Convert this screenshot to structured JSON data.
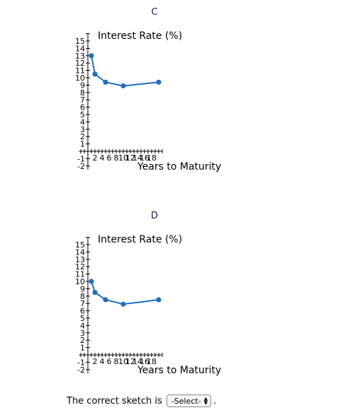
{
  "charts": [
    {
      "title": "C"
    },
    {
      "title": "D"
    }
  ],
  "answer": {
    "label": "The correct sketch is",
    "select_value": "-Select-",
    "period": "."
  },
  "chart_data": [
    {
      "type": "line",
      "title": "C",
      "xlabel": "Years to Maturity",
      "ylabel": "Interest Rate (%)",
      "xlim": [
        -2.5,
        21
      ],
      "ylim": [
        -2.5,
        16
      ],
      "x_ticks": [
        2,
        4,
        6,
        8,
        10,
        12,
        14,
        16,
        18
      ],
      "y_ticks": [
        -2,
        -1,
        1,
        2,
        3,
        4,
        5,
        6,
        7,
        8,
        9,
        10,
        11,
        12,
        13,
        14,
        15
      ],
      "grid": false,
      "series": [
        {
          "x": [
            1,
            2,
            5,
            10,
            20
          ],
          "y": [
            13,
            10.5,
            9.4,
            8.9,
            9.4
          ]
        }
      ],
      "line_color": "#1f6fbf"
    },
    {
      "type": "line",
      "title": "D",
      "xlabel": "Years to Maturity",
      "ylabel": "Interest Rate (%)",
      "xlim": [
        -2.5,
        21
      ],
      "ylim": [
        -2.5,
        16
      ],
      "x_ticks": [
        2,
        4,
        6,
        8,
        10,
        12,
        14,
        16,
        18
      ],
      "y_ticks": [
        -2,
        -1,
        1,
        2,
        3,
        4,
        5,
        6,
        7,
        8,
        9,
        10,
        11,
        12,
        13,
        14,
        15
      ],
      "grid": false,
      "series": [
        {
          "x": [
            1,
            2,
            5,
            10,
            20
          ],
          "y": [
            10,
            8.5,
            7.5,
            6.9,
            7.5
          ]
        }
      ],
      "line_color": "#1f6fbf"
    }
  ]
}
